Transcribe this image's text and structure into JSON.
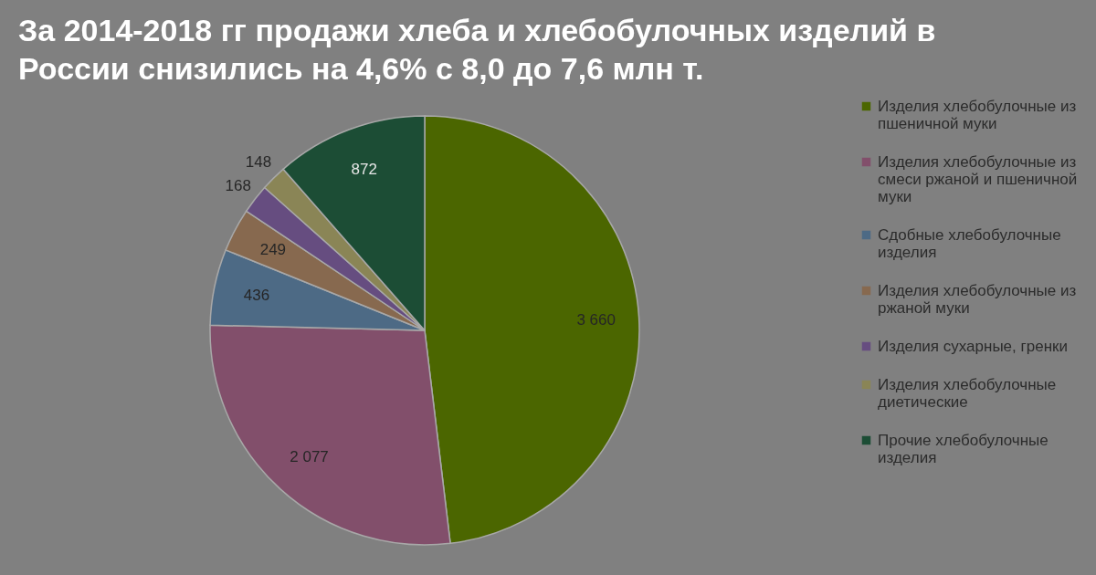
{
  "chart_data": {
    "type": "pie",
    "title": "За 2014-2018 гг продажи хлеба и хлебобулочных изделий в России снизились на 4,6% с 8,0 до 7,6 млн т.",
    "categories": [
      "Изделия хлебобулочные из пшеничной муки",
      "Изделия хлебобулочные из смеси ржаной и пшеничной муки",
      "Сдобные хлебобулочные изделия",
      "Изделия хлебобулочные из ржаной муки",
      "Изделия сухарные, гренки",
      "Изделия хлебобулочные диетические",
      "Прочие хлебобулочные изделия"
    ],
    "values": [
      3660,
      2077,
      436,
      249,
      168,
      148,
      872
    ],
    "colors": [
      "#4b6600",
      "#824f6b",
      "#4d6a85",
      "#87694f",
      "#664d80",
      "#8a8556",
      "#1c4d35"
    ],
    "data_labels": true,
    "legend": "right"
  }
}
